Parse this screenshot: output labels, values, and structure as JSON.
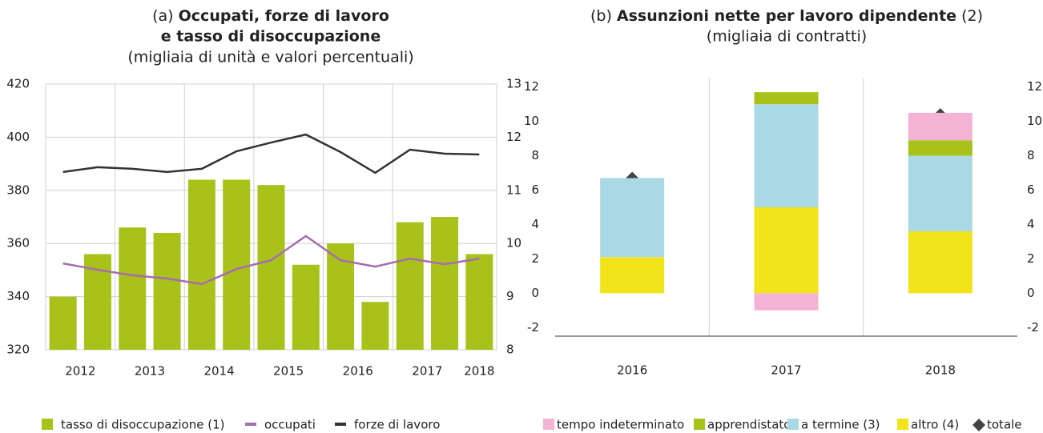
{
  "chart_data": [
    {
      "type": "combo",
      "title_label": "(a)",
      "title": [
        "Occupati, forze di lavoro",
        "e tasso di disoccupazione"
      ],
      "subtitle": "(migliaia di unità e valori percentuali)",
      "categories": [
        "2012",
        null,
        "2013",
        null,
        "2014",
        null,
        "2015",
        null,
        "2016",
        null,
        "2017",
        null,
        "2018"
      ],
      "ylim": [
        320,
        420
      ],
      "yticks": [
        320,
        340,
        360,
        380,
        400,
        420
      ],
      "y2lim": [
        8,
        13
      ],
      "y2ticks": [
        8,
        9,
        10,
        11,
        12,
        13
      ],
      "grid": true,
      "series": [
        {
          "name": "tasso di disoccupazione (1)",
          "kind": "bar",
          "axis": "y2",
          "color": "#a8c21a",
          "values": [
            9.0,
            9.8,
            10.3,
            10.2,
            11.2,
            11.2,
            11.1,
            9.6,
            10.0,
            8.9,
            10.4,
            10.5,
            9.8
          ]
        },
        {
          "name": "occupati",
          "kind": "line",
          "color": "#a66bb5",
          "values": [
            352.5,
            350.1,
            348.0,
            346.8,
            344.7,
            350.4,
            353.7,
            362.8,
            353.7,
            351.3,
            354.3,
            352.2,
            354.3
          ]
        },
        {
          "name": "forze di lavoro",
          "kind": "line",
          "color": "#333333",
          "values": [
            386.9,
            388.7,
            388.1,
            386.9,
            388.1,
            394.7,
            398.0,
            401.0,
            394.4,
            386.6,
            395.3,
            393.8,
            393.5
          ]
        }
      ]
    },
    {
      "type": "stacked_bar",
      "title_label": "(b)",
      "title": "Assunzioni nette per lavoro dipendente",
      "title_note": "(2)",
      "subtitle": "(migliaia di contratti)",
      "categories": [
        "2016",
        "2017",
        "2018"
      ],
      "ylim": [
        -2.5,
        12.5
      ],
      "yticks": [
        -2,
        0,
        2,
        4,
        6,
        8,
        10,
        12
      ],
      "y2lim": [
        -2.5,
        12.5
      ],
      "y2ticks": [
        -2,
        0,
        2,
        4,
        6,
        8,
        10,
        12
      ],
      "grid": false,
      "series": [
        {
          "name": "tempo indeterminato",
          "kind": "bar",
          "color": "#f4b3d4",
          "values": [
            0,
            -1.0,
            1.6
          ]
        },
        {
          "name": "apprendistato",
          "kind": "bar",
          "color": "#a8c21a",
          "values": [
            0,
            0.7,
            0.9
          ]
        },
        {
          "name": "a termine (3)",
          "kind": "bar",
          "color": "#a9d9e4",
          "values": [
            4.6,
            6.0,
            4.4
          ]
        },
        {
          "name": "altro (4)",
          "kind": "bar",
          "color": "#f1e41a",
          "values": [
            2.1,
            5.0,
            3.6
          ]
        },
        {
          "name": "totale",
          "kind": "marker",
          "color": "#444444",
          "values": [
            6.7,
            10.6,
            10.4
          ]
        }
      ]
    }
  ]
}
